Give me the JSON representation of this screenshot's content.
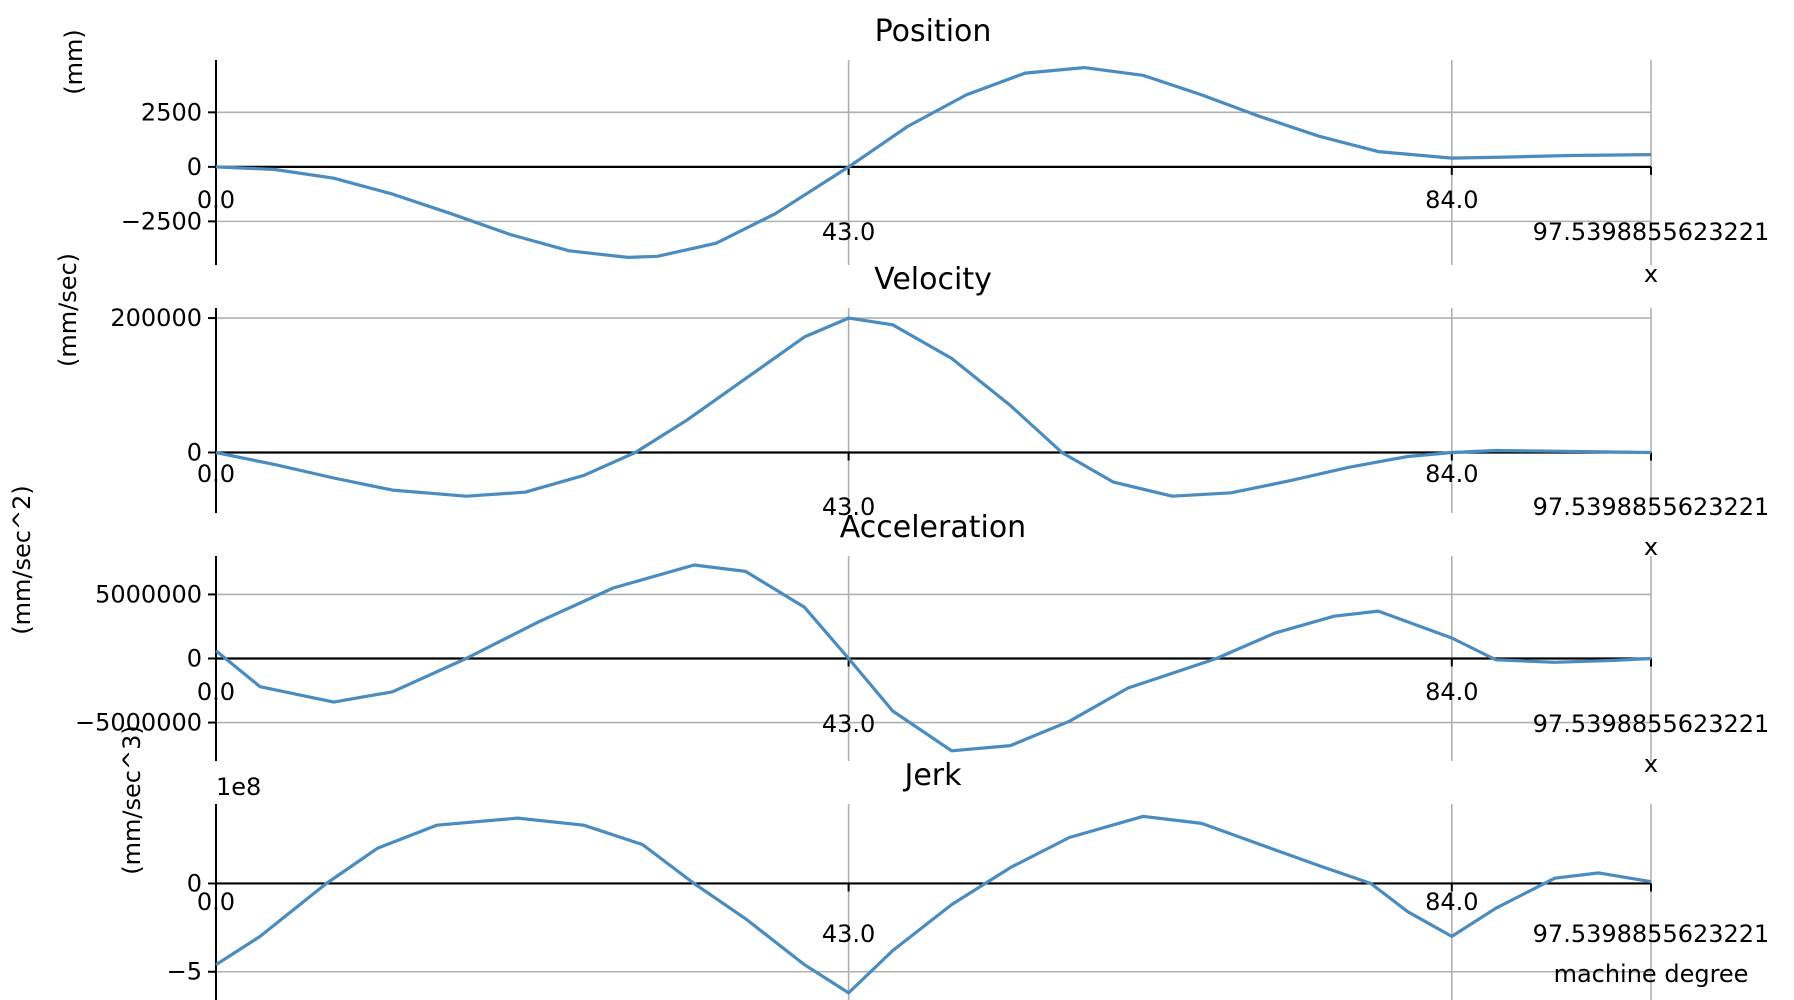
{
  "chart_data": [
    {
      "type": "line",
      "title": "Position",
      "ylabel": "(mm)",
      "xlabel": "x",
      "x_ticks": [
        "0.0",
        "43.0",
        "84.0",
        "97.5398855623221"
      ],
      "x_tick_values": [
        0,
        43,
        84,
        97.5398855623221
      ],
      "y_ticks": [
        "−2500",
        "0",
        "2500"
      ],
      "y_tick_values": [
        -2500,
        0,
        2500
      ],
      "xlim": [
        0,
        97.5398855623221
      ],
      "ylim": [
        -4500,
        4900
      ],
      "grid": true,
      "line_color": "#4a8cc0",
      "series": [
        {
          "x": [
            0,
            4,
            8,
            12,
            16,
            20,
            24,
            28,
            30,
            34,
            38,
            43,
            47,
            51,
            55,
            59,
            63,
            67,
            71,
            75,
            79,
            84,
            88,
            92,
            97.54
          ],
          "y": [
            0,
            -120,
            -520,
            -1250,
            -2150,
            -3100,
            -3850,
            -4150,
            -4100,
            -3500,
            -2150,
            0,
            1850,
            3300,
            4300,
            4550,
            4200,
            3300,
            2300,
            1400,
            700,
            400,
            450,
            520,
            560
          ]
        }
      ]
    },
    {
      "type": "line",
      "title": "Velocity",
      "ylabel": "(mm/sec)",
      "xlabel": "x",
      "x_ticks": [
        "0.0",
        "43.0",
        "84.0",
        "97.5398855623221"
      ],
      "x_tick_values": [
        0,
        43,
        84,
        97.5398855623221
      ],
      "y_ticks": [
        "0",
        "200000"
      ],
      "y_tick_values": [
        0,
        200000
      ],
      "xlim": [
        0,
        97.5398855623221
      ],
      "ylim": [
        -90000,
        215000
      ],
      "grid": true,
      "line_color": "#4a8cc0",
      "series": [
        {
          "x": [
            0,
            4,
            8,
            12,
            17,
            21,
            25,
            28.5,
            32,
            36,
            40,
            43,
            46,
            50,
            54,
            57.5,
            61,
            65,
            69,
            73,
            77,
            81,
            84,
            87,
            91,
            97.54
          ],
          "y": [
            0,
            -18000,
            -38000,
            -56000,
            -65000,
            -59000,
            -34000,
            0,
            48000,
            110000,
            172000,
            200000,
            190000,
            140000,
            70000,
            0,
            -44000,
            -65000,
            -60000,
            -42000,
            -22000,
            -6000,
            0,
            3000,
            2000,
            0
          ]
        }
      ]
    },
    {
      "type": "line",
      "title": "Acceleration",
      "ylabel": "(mm/sec^2)",
      "xlabel": "x",
      "x_ticks": [
        "0.0",
        "43.0",
        "84.0",
        "97.5398855623221"
      ],
      "x_tick_values": [
        0,
        43,
        84,
        97.5398855623221
      ],
      "y_ticks": [
        "−5000000",
        "0",
        "5000000"
      ],
      "y_tick_values": [
        -5000000,
        0,
        5000000
      ],
      "xlim": [
        0,
        97.5398855623221
      ],
      "ylim": [
        -8000000,
        8000000
      ],
      "grid": true,
      "line_color": "#4a8cc0",
      "series": [
        {
          "x": [
            0,
            3,
            8,
            12,
            17,
            22,
            27,
            32.5,
            36,
            40,
            43,
            46,
            50,
            54,
            58,
            62,
            68,
            72,
            76,
            79,
            84,
            87,
            91,
            95,
            97.54
          ],
          "y": [
            600000,
            -2200000,
            -3400000,
            -2600000,
            0,
            2900000,
            5500000,
            7300000,
            6800000,
            4000000,
            0,
            -4100000,
            -7200000,
            -6800000,
            -4900000,
            -2300000,
            0,
            2000000,
            3300000,
            3700000,
            1600000,
            -100000,
            -300000,
            -150000,
            0
          ]
        }
      ]
    },
    {
      "type": "line",
      "title": "Jerk",
      "ylabel": "(mm/sec^3)",
      "xlabel": "machine degree",
      "y_offset_text": "1e8",
      "x_ticks": [
        "0.0",
        "43.0",
        "84.0",
        "97.5398855623221"
      ],
      "x_tick_values": [
        0,
        43,
        84,
        97.5398855623221
      ],
      "y_ticks": [
        "−5",
        "0"
      ],
      "y_tick_values": [
        -5,
        0
      ],
      "xlim": [
        0,
        97.5398855623221
      ],
      "ylim": [
        -6.6,
        4.5
      ],
      "grid": true,
      "line_color": "#4a8cc0",
      "series": [
        {
          "x": [
            0,
            3,
            7.5,
            11,
            15,
            20.5,
            25,
            29,
            32.5,
            36,
            40,
            43,
            46,
            50,
            54,
            58,
            63,
            67,
            71,
            75,
            78.5,
            81,
            84,
            87,
            91,
            94,
            97.54
          ],
          "y": [
            -4.6,
            -3.0,
            0,
            2.0,
            3.3,
            3.7,
            3.3,
            2.2,
            0,
            -2.0,
            -4.6,
            -6.2,
            -3.8,
            -1.2,
            0.9,
            2.6,
            3.8,
            3.4,
            2.2,
            1.0,
            0,
            -1.6,
            -3.0,
            -1.4,
            0.3,
            0.6,
            0.1
          ]
        }
      ]
    }
  ]
}
